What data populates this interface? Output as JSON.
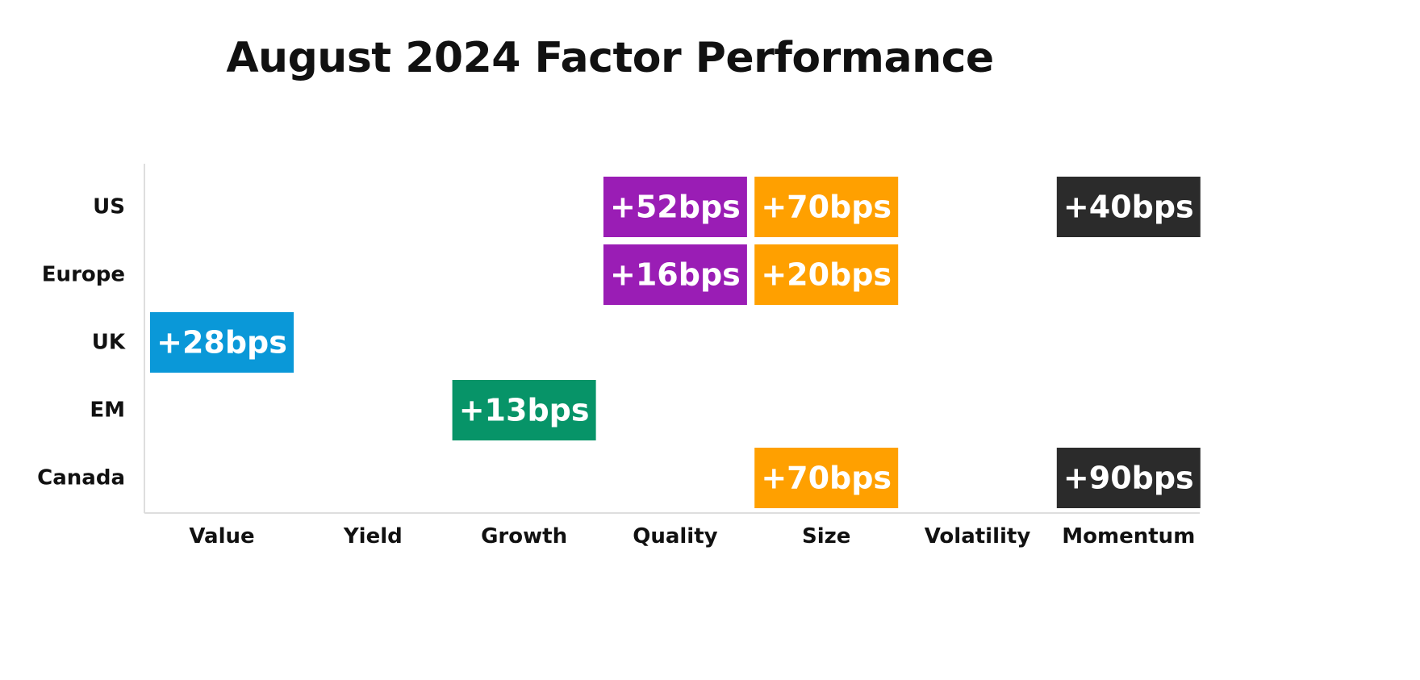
{
  "chart_data": {
    "type": "heatmap",
    "title": "August 2024 Factor Performance",
    "columns": [
      "Value",
      "Yield",
      "Growth",
      "Quality",
      "Size",
      "Volatility",
      "Momentum"
    ],
    "rows": [
      "US",
      "Europe",
      "UK",
      "EM",
      "Canada"
    ],
    "cells": [
      {
        "row": "US",
        "column": "Quality",
        "value": 52,
        "label": "+52bps",
        "color": "#9a1db5"
      },
      {
        "row": "US",
        "column": "Size",
        "value": 70,
        "label": "+70bps",
        "color": "#ffa000"
      },
      {
        "row": "US",
        "column": "Momentum",
        "value": 40,
        "label": "+40bps",
        "color": "#2b2b2b"
      },
      {
        "row": "Europe",
        "column": "Quality",
        "value": 16,
        "label": "+16bps",
        "color": "#9a1db5"
      },
      {
        "row": "Europe",
        "column": "Size",
        "value": 20,
        "label": "+20bps",
        "color": "#ffa000"
      },
      {
        "row": "UK",
        "column": "Value",
        "value": 28,
        "label": "+28bps",
        "color": "#0a98d8"
      },
      {
        "row": "EM",
        "column": "Growth",
        "value": 13,
        "label": "+13bps",
        "color": "#079468"
      },
      {
        "row": "Canada",
        "column": "Size",
        "value": 70,
        "label": "+70bps",
        "color": "#ffa000"
      },
      {
        "row": "Canada",
        "column": "Momentum",
        "value": 90,
        "label": "+90bps",
        "color": "#2b2b2b"
      }
    ]
  }
}
